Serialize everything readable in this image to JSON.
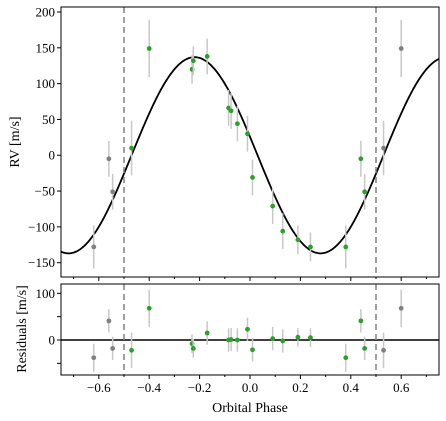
{
  "chart_data": [
    {
      "type": "scatter",
      "panel": "rv",
      "xlabel": "",
      "ylabel": "RV [m/s]",
      "xlim": [
        -0.75,
        0.75
      ],
      "ylim": [
        -170,
        207
      ],
      "xticks": [
        -0.6,
        -0.4,
        -0.2,
        0.0,
        0.2,
        0.4,
        0.6
      ],
      "xticklabels": [
        "",
        "",
        "",
        "",
        "",
        "",
        ""
      ],
      "yticks": [
        -150,
        -100,
        -50,
        0,
        50,
        100,
        150,
        200
      ],
      "yticklabels": [
        "−150",
        "−100",
        "−50",
        "0",
        "50",
        "100",
        "150",
        "200"
      ],
      "model": {
        "amplitude": 137,
        "period": 1.0,
        "peak_phase": -0.22,
        "offset": 0,
        "color": "#000000"
      },
      "phase_boundaries": [
        -0.5,
        0.5
      ],
      "boundary_color": "#808080",
      "series": [
        {
          "role": "primary",
          "color": "#2ca02c",
          "points": [
            {
              "x": -0.47,
              "y": 10,
              "err": 38
            },
            {
              "x": -0.4,
              "y": 149,
              "err": 40
            },
            {
              "x": -0.23,
              "y": 120,
              "err": 20
            },
            {
              "x": -0.225,
              "y": 132,
              "err": 20
            },
            {
              "x": -0.17,
              "y": 138,
              "err": 25
            },
            {
              "x": -0.085,
              "y": 66,
              "err": 25
            },
            {
              "x": -0.075,
              "y": 62,
              "err": 25
            },
            {
              "x": -0.05,
              "y": 44,
              "err": 25
            },
            {
              "x": -0.01,
              "y": 30,
              "err": 25
            },
            {
              "x": 0.01,
              "y": -31,
              "err": 25
            },
            {
              "x": 0.09,
              "y": -71,
              "err": 25
            },
            {
              "x": 0.13,
              "y": -106,
              "err": 25
            },
            {
              "x": 0.19,
              "y": -118,
              "err": 20
            },
            {
              "x": 0.24,
              "y": -128,
              "err": 20
            },
            {
              "x": 0.38,
              "y": -128,
              "err": 30
            },
            {
              "x": 0.44,
              "y": -5,
              "err": 25
            },
            {
              "x": 0.455,
              "y": -51,
              "err": 25
            }
          ]
        },
        {
          "role": "repeat",
          "color": "#808080",
          "points": [
            {
              "x": -0.62,
              "y": -128,
              "err": 30
            },
            {
              "x": -0.56,
              "y": -5,
              "err": 25
            },
            {
              "x": -0.545,
              "y": -51,
              "err": 25
            },
            {
              "x": 0.53,
              "y": 10,
              "err": 38
            },
            {
              "x": 0.6,
              "y": 149,
              "err": 40
            }
          ]
        }
      ]
    },
    {
      "type": "scatter",
      "panel": "residuals",
      "xlabel": "Orbital Phase",
      "ylabel": "Residuals [m/s]",
      "xlim": [
        -0.75,
        0.75
      ],
      "ylim": [
        -75,
        120
      ],
      "xticks": [
        -0.6,
        -0.4,
        -0.2,
        0.0,
        0.2,
        0.4,
        0.6
      ],
      "xticklabels": [
        "−0.6",
        "−0.4",
        "−0.2",
        "0.0",
        "0.2",
        "0.4",
        "0.6"
      ],
      "yticks": [
        -50,
        0,
        50,
        100
      ],
      "yticklabels": [
        "",
        "0",
        "",
        "100"
      ],
      "zero_line": 0,
      "phase_boundaries": [
        -0.5,
        0.5
      ],
      "boundary_color": "#808080",
      "series": [
        {
          "role": "primary",
          "color": "#2ca02c",
          "points": [
            {
              "x": -0.47,
              "y": -22,
              "err": 38
            },
            {
              "x": -0.4,
              "y": 68,
              "err": 40
            },
            {
              "x": -0.23,
              "y": -8,
              "err": 20
            },
            {
              "x": -0.225,
              "y": -18,
              "err": 20
            },
            {
              "x": -0.17,
              "y": 15,
              "err": 25
            },
            {
              "x": -0.085,
              "y": 0,
              "err": 25
            },
            {
              "x": -0.075,
              "y": 1,
              "err": 25
            },
            {
              "x": -0.05,
              "y": 0,
              "err": 25
            },
            {
              "x": -0.01,
              "y": 23,
              "err": 25
            },
            {
              "x": 0.01,
              "y": -21,
              "err": 25
            },
            {
              "x": 0.09,
              "y": 3,
              "err": 25
            },
            {
              "x": 0.13,
              "y": -2,
              "err": 25
            },
            {
              "x": 0.19,
              "y": 6,
              "err": 20
            },
            {
              "x": 0.24,
              "y": 5,
              "err": 20
            },
            {
              "x": 0.38,
              "y": -38,
              "err": 30
            },
            {
              "x": 0.44,
              "y": 41,
              "err": 25
            },
            {
              "x": 0.455,
              "y": -18,
              "err": 25
            }
          ]
        },
        {
          "role": "repeat",
          "color": "#808080",
          "points": [
            {
              "x": -0.62,
              "y": -38,
              "err": 30
            },
            {
              "x": -0.56,
              "y": 41,
              "err": 25
            },
            {
              "x": -0.545,
              "y": -18,
              "err": 25
            },
            {
              "x": 0.53,
              "y": -22,
              "err": 38
            },
            {
              "x": 0.6,
              "y": 68,
              "err": 40
            }
          ]
        }
      ]
    }
  ]
}
